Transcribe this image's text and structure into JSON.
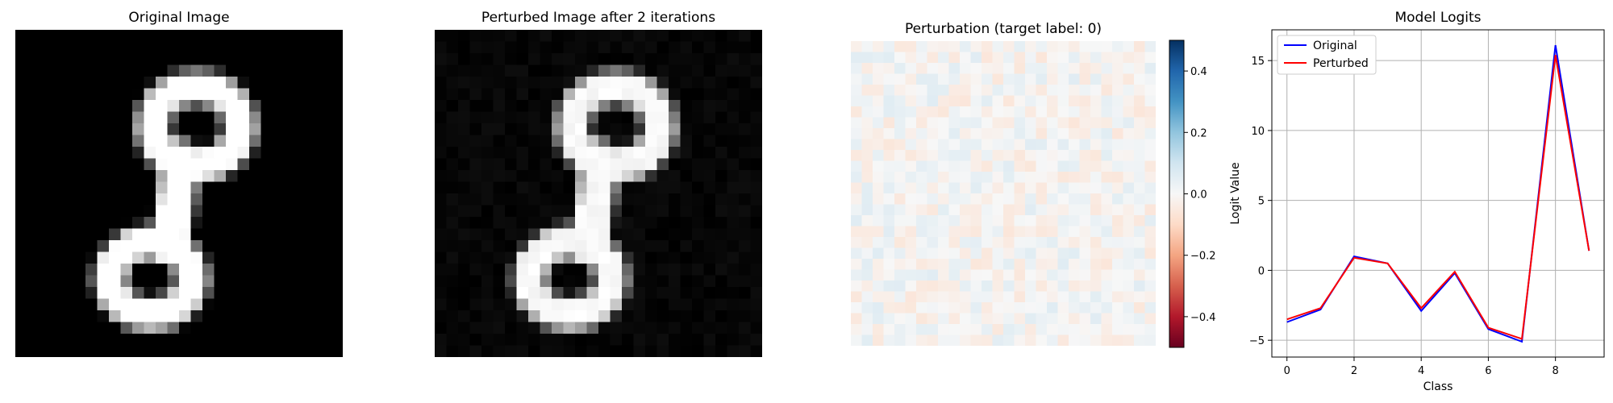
{
  "panels": {
    "original_title": "Original Image",
    "perturbed_title": "Perturbed Image after 2 iterations",
    "perturbation_title": "Perturbation (target label: 0)",
    "logits_title": "Model Logits"
  },
  "colorbar": {
    "ticks": [
      0.4,
      0.2,
      0.0,
      -0.2,
      -0.4
    ],
    "tick_labels": [
      "0.4",
      "0.2",
      "0.0",
      "−0.2",
      "−0.4"
    ],
    "range": [
      -0.5,
      0.5
    ]
  },
  "chart_data": [
    {
      "type": "heatmap",
      "title": "Original Image",
      "colormap": "gray",
      "digit_glyph": "8",
      "grid": "28x28"
    },
    {
      "type": "heatmap",
      "title": "Perturbed Image after 2 iterations",
      "colormap": "gray",
      "digit_glyph": "8",
      "grid": "28x28"
    },
    {
      "type": "heatmap",
      "title": "Perturbation (target label: 0)",
      "colormap": "RdBu",
      "vmin": -0.5,
      "vmax": 0.5,
      "grid": "28x28"
    },
    {
      "type": "line",
      "title": "Model Logits",
      "xlabel": "Class",
      "ylabel": "Logit Value",
      "x": [
        0,
        1,
        2,
        3,
        4,
        5,
        6,
        7,
        8,
        9
      ],
      "xticks": [
        0,
        2,
        4,
        6,
        8
      ],
      "yticks": [
        -5,
        0,
        5,
        10,
        15
      ],
      "xlim": [
        -0.45,
        9.45
      ],
      "ylim": [
        -6.2,
        17.2
      ],
      "grid": true,
      "legend": "top-left",
      "series": [
        {
          "name": "Original",
          "color": "#0000ff",
          "values": [
            -3.7,
            -2.8,
            1.0,
            0.5,
            -2.9,
            -0.2,
            -4.2,
            -5.1,
            16.1,
            1.4
          ]
        },
        {
          "name": "Perturbed",
          "color": "#ff0000",
          "values": [
            -3.5,
            -2.7,
            0.9,
            0.5,
            -2.7,
            -0.1,
            -4.1,
            -4.9,
            15.4,
            1.4
          ]
        }
      ]
    }
  ]
}
